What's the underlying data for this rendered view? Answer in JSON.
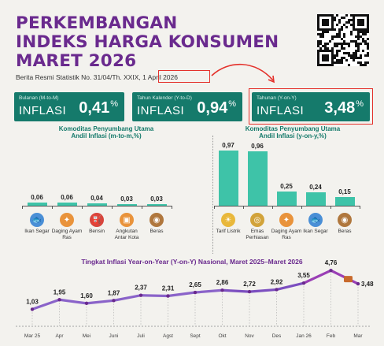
{
  "title_lines": [
    "PERKEMBANGAN",
    "INDEKS HARGA KONSUMEN",
    "MARET 2026"
  ],
  "subtitle": "Berita Resmi Statistik No. 31/04/Th. XXIX, 1 April 2026",
  "cards": [
    {
      "label": "Bulanan (M-to-M)",
      "word": "INFLASI",
      "value": "0,41",
      "unit": "%"
    },
    {
      "label": "Tahun Kalender (Y-to-D)",
      "word": "INFLASI",
      "value": "0,94",
      "unit": "%"
    },
    {
      "label": "Tahunan (Y-on-Y)",
      "word": "INFLASI",
      "value": "3,48",
      "unit": "%"
    }
  ],
  "colors": {
    "purple": "#6a2a8e",
    "teal": "#157a6b",
    "bar": "#3ec3a8",
    "highlight": "#e4312b"
  },
  "chart_data": [
    {
      "type": "bar",
      "title_line1": "Komoditas Penyumbang Utama",
      "title_line2": "Andil Inflasi (m-to-m,%)",
      "categories": [
        "Ikan Segar",
        "Daging Ayam Ras",
        "Bensin",
        "Angkutan Antar Kota",
        "Beras"
      ],
      "values": [
        0.06,
        0.06,
        0.04,
        0.03,
        0.03
      ],
      "labels": [
        "0,06",
        "0,06",
        "0,04",
        "0,03",
        "0,03"
      ],
      "icons": [
        "fish-icon",
        "chicken-icon",
        "fuel-pump-icon",
        "bus-icon",
        "rice-sack-icon"
      ],
      "ylim": [
        0,
        1.0
      ]
    },
    {
      "type": "bar",
      "title_line1": "Komoditas Penyumbang Utama",
      "title_line2": "Andil Inflasi (y-on-y,%)",
      "categories": [
        "Tarif Listrik",
        "Emas Perhiasan",
        "Daging Ayam Ras",
        "Ikan Segar",
        "Beras"
      ],
      "values": [
        0.97,
        0.96,
        0.25,
        0.24,
        0.15
      ],
      "labels": [
        "0,97",
        "0,96",
        "0,25",
        "0,24",
        "0,15"
      ],
      "icons": [
        "lightbulb-icon",
        "gold-ring-icon",
        "chicken-icon",
        "fish-icon",
        "rice-sack-icon"
      ],
      "ylim": [
        0,
        1.0
      ]
    },
    {
      "type": "line",
      "title": "Tingkat Inflasi Year-on-Year (Y-on-Y) Nasional, Maret 2025–Maret 2026",
      "categories": [
        "Mar 25",
        "Apr",
        "Mei",
        "Juni",
        "Juli",
        "Agst",
        "Sept",
        "Okt",
        "Nov",
        "Des",
        "Jan 26",
        "Feb",
        "Mar"
      ],
      "values": [
        1.03,
        1.95,
        1.6,
        1.87,
        2.37,
        2.31,
        2.65,
        2.86,
        2.72,
        2.92,
        3.55,
        4.76,
        3.48
      ],
      "labels": [
        "1,03",
        "1,95",
        "1,60",
        "1,87",
        "2,37",
        "2,31",
        "2,65",
        "2,86",
        "2,72",
        "2,92",
        "3,55",
        "4,76",
        "3,48"
      ],
      "ylim": [
        0,
        5
      ]
    }
  ]
}
